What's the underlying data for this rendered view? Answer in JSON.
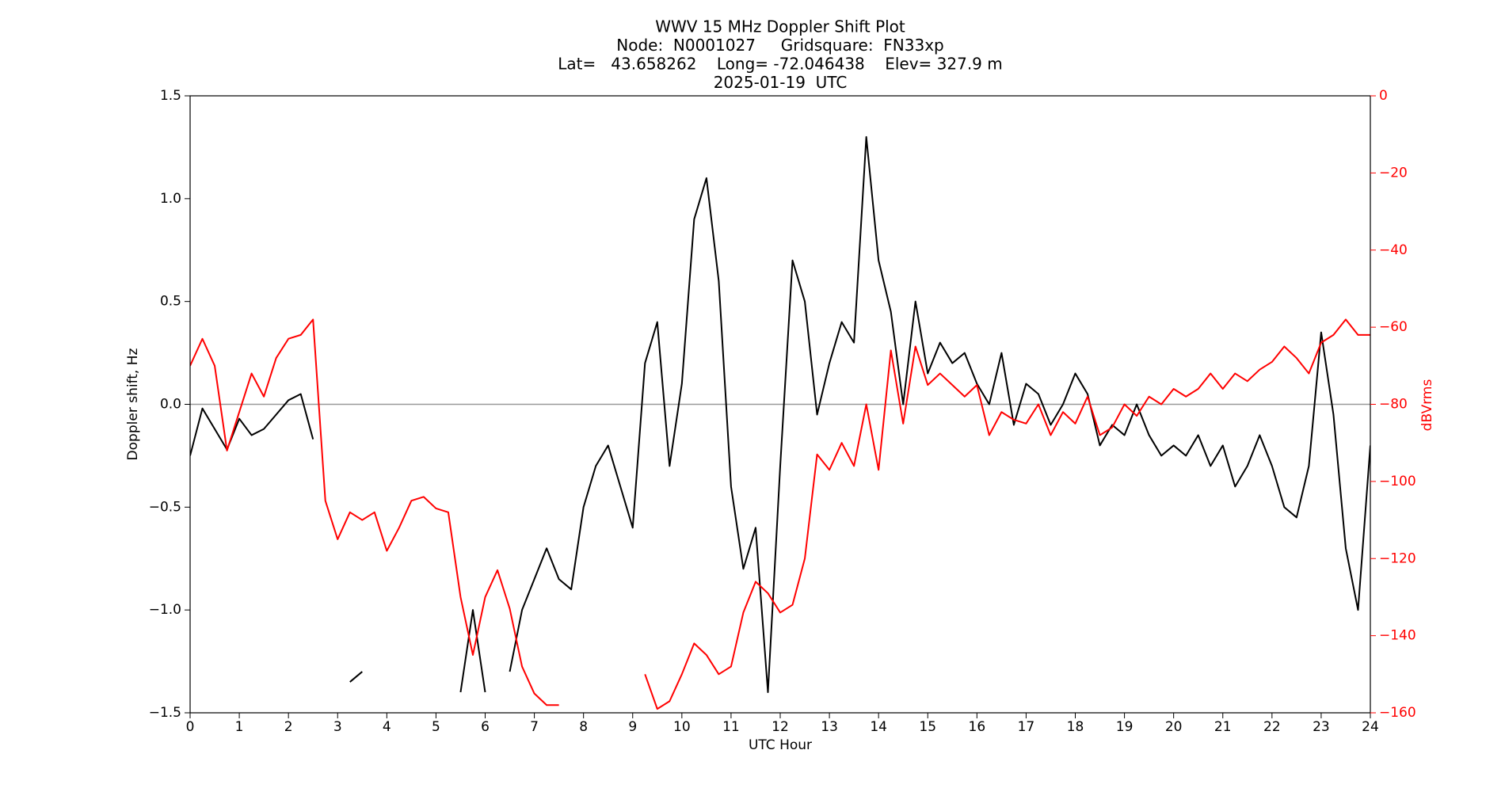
{
  "chart_data": {
    "type": "line",
    "title": [
      "WWV 15 MHz Doppler Shift Plot",
      "Node:  N0001027     Gridsquare:  FN33xp",
      "Lat=   43.658262    Long= -72.046438    Elev= 327.9 m",
      "2025-01-19  UTC"
    ],
    "x_label": "UTC Hour",
    "y_label": "Doppler shift, Hz",
    "y2_label": "dBVrms",
    "x": [
      0,
      0.25,
      0.5,
      0.75,
      1,
      1.25,
      1.5,
      1.75,
      2,
      2.25,
      2.5,
      2.75,
      3,
      3.25,
      3.5,
      3.75,
      4,
      4.25,
      4.5,
      4.75,
      5,
      5.25,
      5.5,
      5.75,
      6,
      6.25,
      6.5,
      6.75,
      7,
      7.25,
      7.5,
      7.75,
      8,
      8.25,
      8.5,
      8.75,
      9,
      9.25,
      9.5,
      9.75,
      10,
      10.25,
      10.5,
      10.75,
      11,
      11.25,
      11.5,
      11.75,
      12,
      12.25,
      12.5,
      12.75,
      13,
      13.25,
      13.5,
      13.75,
      14,
      14.25,
      14.5,
      14.75,
      15,
      15.25,
      15.5,
      15.75,
      16,
      16.25,
      16.5,
      16.75,
      17,
      17.25,
      17.5,
      17.75,
      18,
      18.25,
      18.5,
      18.75,
      19,
      19.25,
      19.5,
      19.75,
      20,
      20.25,
      20.5,
      20.75,
      21,
      21.25,
      21.5,
      21.75,
      22,
      22.25,
      22.5,
      22.75,
      23,
      23.25,
      23.5,
      23.75,
      24
    ],
    "series": [
      {
        "color": "#000000",
        "values": [
          -0.25,
          -0.02,
          -0.12,
          -0.22,
          -0.07,
          -0.15,
          -0.12,
          -0.05,
          0.02,
          0.05,
          -0.17,
          null,
          null,
          -1.35,
          -1.3,
          null,
          null,
          null,
          null,
          null,
          null,
          null,
          -1.4,
          -1.0,
          -1.4,
          null,
          -1.3,
          -1.0,
          -0.85,
          -0.7,
          -0.85,
          -0.9,
          -0.5,
          -0.3,
          -0.2,
          -0.4,
          -0.6,
          0.2,
          0.4,
          -0.3,
          0.1,
          0.9,
          1.1,
          0.6,
          -0.4,
          -0.8,
          -0.6,
          -1.4,
          -0.3,
          0.7,
          0.5,
          -0.05,
          0.2,
          0.4,
          0.3,
          1.3,
          0.7,
          0.45,
          0.0,
          0.5,
          0.15,
          0.3,
          0.2,
          0.25,
          0.1,
          0.0,
          0.25,
          -0.1,
          0.1,
          0.05,
          -0.1,
          0.0,
          0.15,
          0.05,
          -0.2,
          -0.1,
          -0.15,
          0.0,
          -0.15,
          -0.25,
          -0.2,
          -0.25,
          -0.15,
          -0.3,
          -0.2,
          -0.4,
          -0.3,
          -0.15,
          -0.3,
          -0.5,
          -0.55,
          -0.3,
          0.35,
          -0.05,
          -0.7,
          -1.0,
          -0.2
        ]
      },
      {
        "color": "#ff0000",
        "axis": "y2",
        "values": [
          -70,
          -63,
          -70,
          -92,
          -82,
          -72,
          -78,
          -68,
          -63,
          -62,
          -58,
          -105,
          -115,
          -108,
          -110,
          -108,
          -118,
          -112,
          -105,
          -104,
          -107,
          -108,
          -130,
          -145,
          -130,
          -123,
          -133,
          -148,
          -155,
          -158,
          -158,
          null,
          null,
          null,
          null,
          null,
          null,
          -150,
          -159,
          -157,
          -150,
          -142,
          -145,
          -150,
          -148,
          -134,
          -126,
          -129,
          -134,
          -132,
          -120,
          -93,
          -97,
          -90,
          -96,
          -80,
          -97,
          -66,
          -85,
          -65,
          -75,
          -72,
          -75,
          -78,
          -75,
          -88,
          -82,
          -84,
          -85,
          -80,
          -88,
          -82,
          -85,
          -78,
          -88,
          -86,
          -80,
          -83,
          -78,
          -80,
          -76,
          -78,
          -76,
          -72,
          -76,
          -72,
          -74,
          -71,
          -69,
          -65,
          -68,
          -72,
          -64,
          -62,
          -58,
          -62,
          -62
        ]
      }
    ],
    "xlim": [
      0,
      24
    ],
    "xticks": [
      0,
      1,
      2,
      3,
      4,
      5,
      6,
      7,
      8,
      9,
      10,
      11,
      12,
      13,
      14,
      15,
      16,
      17,
      18,
      19,
      20,
      21,
      22,
      23,
      24
    ],
    "ylim": [
      -1.5,
      1.5
    ],
    "yticks": [
      {
        "value": -1.5,
        "label": "−1.5"
      },
      {
        "value": -1.0,
        "label": "−1.0"
      },
      {
        "value": -0.5,
        "label": "−0.5"
      },
      {
        "value": 0,
        "label": "0.0"
      },
      {
        "value": 0.5,
        "label": "0.5"
      },
      {
        "value": 1.0,
        "label": "1.0"
      },
      {
        "value": 1.5,
        "label": "1.5"
      }
    ],
    "y2lim": [
      -160,
      0
    ],
    "y2ticks": [
      0,
      {
        "value": -20,
        "label": "−20"
      },
      {
        "value": -40,
        "label": "−40"
      },
      {
        "value": -60,
        "label": "−60"
      },
      {
        "value": -80,
        "label": "−80"
      },
      {
        "value": -100,
        "label": "−100"
      },
      {
        "value": -120,
        "label": "−120"
      },
      {
        "value": -140,
        "label": "−140"
      },
      {
        "value": -160,
        "label": "−160"
      }
    ],
    "y2_color": "#ff0000",
    "hlines": [
      0
    ]
  }
}
